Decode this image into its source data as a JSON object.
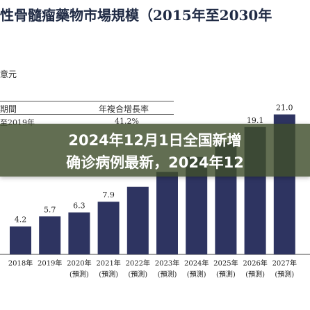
{
  "header": {
    "title": "性骨髓瘤藥物市場規模（2015年至2030年",
    "unit_label": "意元",
    "period_header": "期間",
    "cagr_header": "年複合增長率",
    "row_period": "至2019年",
    "row_cagr": "41.2%"
  },
  "overlay": {
    "line1": "2024年12月1日全国新增",
    "line2": "确诊病例最新，2024年12",
    "background": "#404e2c"
  },
  "chart_data": {
    "type": "bar",
    "categories": [
      "2018年",
      "2019年",
      "2020年",
      "2021年",
      "2022年",
      "2023年",
      "2024年",
      "2025年",
      "2026年",
      "2027年"
    ],
    "subcategories": [
      "",
      "",
      "(預測)",
      "(預測)",
      "(預測)",
      "(預測)",
      "(預測)",
      "(預測)",
      "(預測)",
      "(預測)"
    ],
    "values": [
      4.2,
      5.7,
      6.3,
      7.9,
      null,
      null,
      null,
      null,
      19.1,
      21.0
    ],
    "value_labels": [
      "4.2",
      "5.7",
      "6.3",
      "7.9",
      "",
      "",
      "",
      "",
      "19.1",
      "21.0"
    ],
    "bar_color": "#2e3461",
    "ylim": [
      0,
      22
    ]
  }
}
